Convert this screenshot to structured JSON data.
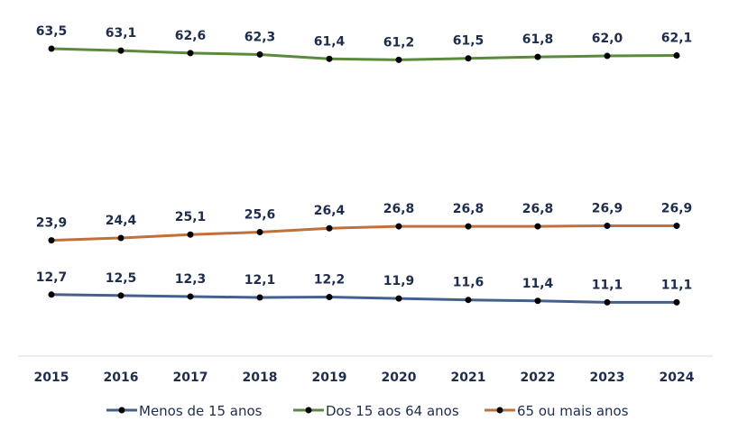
{
  "chart_data": {
    "type": "line",
    "categories": [
      "2015",
      "2016",
      "2017",
      "2018",
      "2019",
      "2020",
      "2021",
      "2022",
      "2023",
      "2024"
    ],
    "ylim": [
      0,
      70
    ],
    "grid": false,
    "legend_position": "bottom",
    "series": [
      {
        "name": "Menos de 15 anos",
        "color": "#44608f",
        "values": [
          12.7,
          12.5,
          12.3,
          12.1,
          12.2,
          11.9,
          11.6,
          11.4,
          11.1,
          11.1
        ],
        "labels": [
          "12,7",
          "12,5",
          "12,3",
          "12,1",
          "12,2",
          "11,9",
          "11,6",
          "11,4",
          "11,1",
          "11,1"
        ]
      },
      {
        "name": "Dos 15 aos 64 anos",
        "color": "#5b8a3c",
        "values": [
          63.5,
          63.1,
          62.6,
          62.3,
          61.4,
          61.2,
          61.5,
          61.8,
          62.0,
          62.1
        ],
        "labels": [
          "63,5",
          "63,1",
          "62,6",
          "62,3",
          "61,4",
          "61,2",
          "61,5",
          "61,8",
          "62,0",
          "62,1"
        ]
      },
      {
        "name": "65 ou mais anos",
        "color": "#c0703a",
        "values": [
          23.9,
          24.4,
          25.1,
          25.6,
          26.4,
          26.8,
          26.8,
          26.8,
          26.9,
          26.9
        ],
        "labels": [
          "23,9",
          "24,4",
          "25,1",
          "25,6",
          "26,4",
          "26,8",
          "26,8",
          "26,8",
          "26,9",
          "26,9"
        ]
      }
    ],
    "label_color": "#1f2d4d",
    "marker_color": "#000000"
  }
}
